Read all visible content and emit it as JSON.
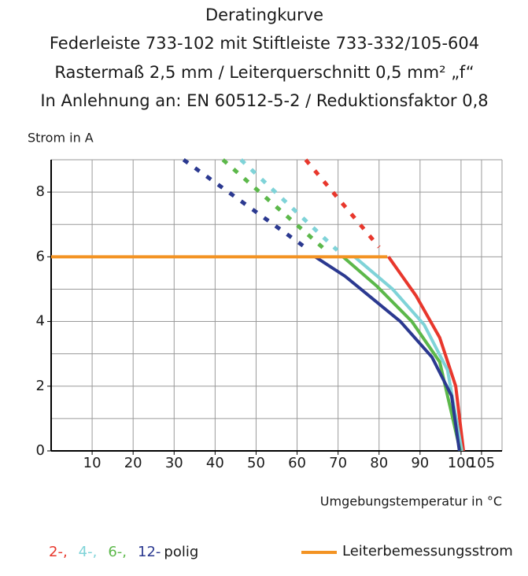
{
  "chart_data": {
    "type": "line",
    "title": [
      "Deratingkurve",
      "Federleiste 733-102 mit Stiftleiste 733-332/105-604",
      "Rastermaß 2,5 mm / Leiterquerschnitt 0,5 mm² „f“",
      "In Anlehnung an: EN 60512-5-2 / Reduktionsfaktor 0,8"
    ],
    "y_label": "Strom in A",
    "x_label": "Umgebungstemperatur in °C",
    "xlim": [
      0,
      110
    ],
    "xticks": [
      10,
      20,
      30,
      40,
      50,
      60,
      70,
      80,
      90,
      100,
      105
    ],
    "ylim": [
      0,
      9
    ],
    "yticks": [
      0,
      2,
      4,
      6,
      8
    ],
    "y_minor_grid": [
      1,
      3,
      5,
      7,
      9
    ],
    "grid": true,
    "series": [
      {
        "name": "2-,",
        "color": "#e8372c",
        "x": [
          82.3,
          89,
          94.8,
          98.7,
          100.6
        ],
        "values": [
          6,
          4.8,
          3.5,
          2.0,
          0
        ],
        "extension": {
          "x": [
            62.1,
            80
          ],
          "values": [
            9,
            6.3
          ]
        }
      },
      {
        "name": "4-,",
        "color": "#7fd3d8",
        "x": [
          74,
          83.3,
          91,
          96.7,
          100.2
        ],
        "values": [
          6,
          5.0,
          3.9,
          2.5,
          0
        ],
        "extension": {
          "x": [
            46.3,
            69.8
          ],
          "values": [
            9,
            6.2
          ]
        }
      },
      {
        "name": "6-,",
        "color": "#5cb84a",
        "x": [
          71.2,
          79.4,
          88,
          94.8,
          99.8
        ],
        "values": [
          6,
          5.1,
          4.0,
          2.75,
          0
        ],
        "extension": {
          "x": [
            41.9,
            67
          ],
          "values": [
            9,
            6.2
          ]
        }
      },
      {
        "name": "12-",
        "color": "#2b3990",
        "x": [
          64.4,
          71.7,
          77.5,
          85.2,
          92.9,
          97.7,
          99.6
        ],
        "values": [
          6,
          5.4,
          4.8,
          4.0,
          2.9,
          1.7,
          0
        ],
        "extension": {
          "x": [
            32.3,
            63
          ],
          "values": [
            9,
            6.2
          ]
        }
      }
    ],
    "legend_suffix": "polig",
    "limit_line": {
      "name": "Leiterbemessungsstrom",
      "color": "#f39323",
      "x": [
        0,
        82
      ],
      "values": [
        6,
        6
      ]
    }
  }
}
